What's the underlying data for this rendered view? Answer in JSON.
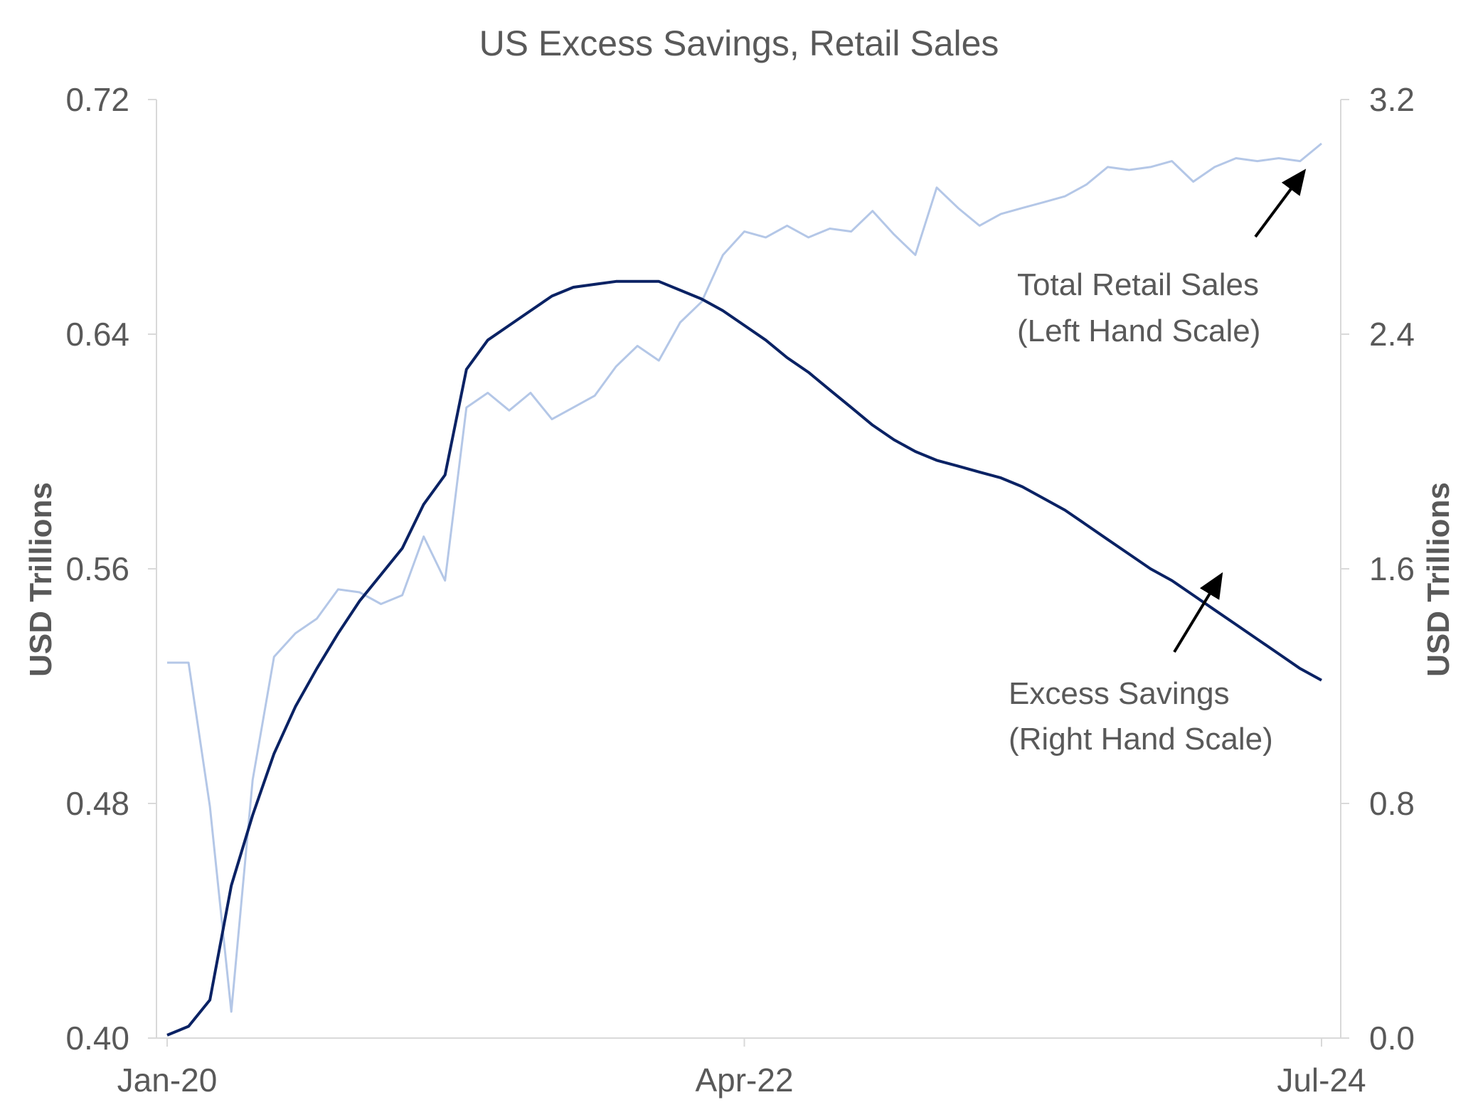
{
  "chart_data": {
    "type": "line",
    "title": "US Excess Savings, Retail Sales",
    "ylabel_left": "USD Trillions",
    "ylabel_right": "USD Trillions",
    "y_left": {
      "min": 0.4,
      "max": 0.72,
      "ticks": [
        "0.40",
        "0.48",
        "0.56",
        "0.64",
        "0.72"
      ]
    },
    "y_right": {
      "min": 0.0,
      "max": 3.2,
      "ticks": [
        "0.0",
        "0.8",
        "1.6",
        "2.4",
        "3.2"
      ]
    },
    "x_ticks": [
      {
        "label": "Jan-20",
        "index": 0
      },
      {
        "label": "Apr-22",
        "index": 27
      },
      {
        "label": "Jul-24",
        "index": 54
      }
    ],
    "grid": false,
    "series": [
      {
        "name": "Total Retail Sales",
        "axis": "left",
        "color": "#b4c7e7",
        "values": [
          0.528,
          0.528,
          0.479,
          0.409,
          0.488,
          0.53,
          0.538,
          0.543,
          0.553,
          0.552,
          0.548,
          0.551,
          0.571,
          0.556,
          0.615,
          0.62,
          0.614,
          0.62,
          0.611,
          0.615,
          0.619,
          0.629,
          0.636,
          0.631,
          0.644,
          0.651,
          0.667,
          0.675,
          0.673,
          0.677,
          0.673,
          0.676,
          0.675,
          0.682,
          0.674,
          0.667,
          0.69,
          0.683,
          0.677,
          0.681,
          0.683,
          0.685,
          0.687,
          0.691,
          0.697,
          0.696,
          0.697,
          0.699,
          0.692,
          0.697,
          0.7,
          0.699,
          0.7,
          0.699,
          0.705
        ]
      },
      {
        "name": "Excess Savings",
        "axis": "right",
        "color": "#0a2264",
        "values": [
          0.01,
          0.04,
          0.13,
          0.52,
          0.76,
          0.97,
          1.13,
          1.26,
          1.38,
          1.49,
          1.58,
          1.67,
          1.82,
          1.92,
          2.28,
          2.38,
          2.43,
          2.48,
          2.53,
          2.56,
          2.57,
          2.58,
          2.58,
          2.58,
          2.55,
          2.52,
          2.48,
          2.43,
          2.38,
          2.32,
          2.27,
          2.21,
          2.15,
          2.09,
          2.04,
          2.0,
          1.97,
          1.95,
          1.93,
          1.91,
          1.88,
          1.84,
          1.8,
          1.75,
          1.7,
          1.65,
          1.6,
          1.56,
          1.51,
          1.46,
          1.41,
          1.36,
          1.31,
          1.26,
          1.22
        ]
      }
    ],
    "annotations": [
      {
        "line1": "Total Retail Sales",
        "line2": "(Left Hand Scale)"
      },
      {
        "line1": "Excess Savings",
        "line2": "(Right Hand Scale)"
      }
    ]
  }
}
